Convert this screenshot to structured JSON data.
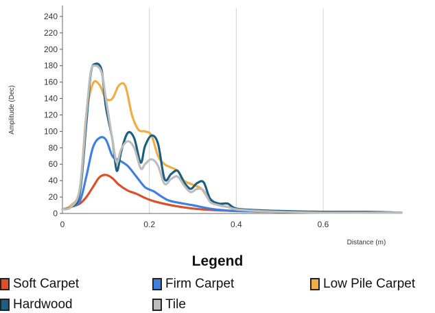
{
  "chart_data": {
    "type": "line",
    "xlabel": "Distance (m)",
    "ylabel": "Amplitude (Dec)",
    "xlim": [
      0,
      0.78
    ],
    "ylim": [
      0,
      250
    ],
    "x_ticks": [
      "0",
      "0.2",
      "0.4",
      "0.6"
    ],
    "x_tick_values": [
      0,
      0.2,
      0.4,
      0.6
    ],
    "y_ticks": [
      "0",
      "20",
      "40",
      "60",
      "80",
      "100",
      "120",
      "140",
      "160",
      "180",
      "200",
      "220",
      "240"
    ],
    "y_tick_values": [
      0,
      20,
      40,
      60,
      80,
      100,
      120,
      140,
      160,
      180,
      200,
      220,
      240
    ],
    "grid": true,
    "legend_title": "Legend",
    "legend_position": "bottom",
    "series": [
      {
        "name": "Soft Carpet",
        "color": "#d9502a",
        "points": [
          [
            0,
            5
          ],
          [
            0.02,
            8
          ],
          [
            0.04,
            12
          ],
          [
            0.055,
            20
          ],
          [
            0.07,
            32
          ],
          [
            0.085,
            44
          ],
          [
            0.1,
            47
          ],
          [
            0.115,
            43
          ],
          [
            0.13,
            35
          ],
          [
            0.15,
            28
          ],
          [
            0.17,
            24
          ],
          [
            0.19,
            19
          ],
          [
            0.21,
            15
          ],
          [
            0.25,
            10
          ],
          [
            0.3,
            6
          ],
          [
            0.35,
            4
          ],
          [
            0.4,
            3
          ],
          [
            0.5,
            2
          ],
          [
            0.6,
            1
          ],
          [
            0.7,
            1
          ],
          [
            0.78,
            1
          ]
        ]
      },
      {
        "name": "Firm Carpet",
        "color": "#3f7fe0",
        "points": [
          [
            0,
            5
          ],
          [
            0.02,
            8
          ],
          [
            0.04,
            15
          ],
          [
            0.055,
            45
          ],
          [
            0.07,
            80
          ],
          [
            0.085,
            92
          ],
          [
            0.1,
            90
          ],
          [
            0.115,
            70
          ],
          [
            0.13,
            65
          ],
          [
            0.15,
            58
          ],
          [
            0.17,
            45
          ],
          [
            0.19,
            32
          ],
          [
            0.21,
            27
          ],
          [
            0.23,
            20
          ],
          [
            0.25,
            15
          ],
          [
            0.3,
            10
          ],
          [
            0.35,
            5
          ],
          [
            0.4,
            3
          ],
          [
            0.5,
            2
          ],
          [
            0.6,
            1
          ],
          [
            0.7,
            1
          ],
          [
            0.78,
            1
          ]
        ]
      },
      {
        "name": "Low Pile Carpet",
        "color": "#f0ad45",
        "points": [
          [
            0,
            5
          ],
          [
            0.02,
            10
          ],
          [
            0.04,
            30
          ],
          [
            0.055,
            120
          ],
          [
            0.07,
            158
          ],
          [
            0.085,
            157
          ],
          [
            0.1,
            140
          ],
          [
            0.115,
            140
          ],
          [
            0.13,
            156
          ],
          [
            0.145,
            155
          ],
          [
            0.16,
            120
          ],
          [
            0.175,
            102
          ],
          [
            0.19,
            100
          ],
          [
            0.205,
            95
          ],
          [
            0.22,
            70
          ],
          [
            0.235,
            60
          ],
          [
            0.25,
            56
          ],
          [
            0.265,
            52
          ],
          [
            0.28,
            40
          ],
          [
            0.3,
            35
          ],
          [
            0.32,
            30
          ],
          [
            0.34,
            15
          ],
          [
            0.36,
            10
          ],
          [
            0.38,
            8
          ],
          [
            0.4,
            5
          ],
          [
            0.45,
            3
          ],
          [
            0.5,
            2
          ],
          [
            0.6,
            1
          ],
          [
            0.7,
            1
          ],
          [
            0.78,
            1
          ]
        ]
      },
      {
        "name": "Hardwood",
        "color": "#1c5f82",
        "points": [
          [
            0,
            5
          ],
          [
            0.02,
            8
          ],
          [
            0.04,
            25
          ],
          [
            0.055,
            110
          ],
          [
            0.065,
            170
          ],
          [
            0.075,
            182
          ],
          [
            0.09,
            175
          ],
          [
            0.1,
            130
          ],
          [
            0.115,
            90
          ],
          [
            0.125,
            52
          ],
          [
            0.135,
            75
          ],
          [
            0.15,
            98
          ],
          [
            0.165,
            92
          ],
          [
            0.18,
            62
          ],
          [
            0.19,
            82
          ],
          [
            0.205,
            95
          ],
          [
            0.22,
            85
          ],
          [
            0.235,
            42
          ],
          [
            0.25,
            48
          ],
          [
            0.265,
            52
          ],
          [
            0.28,
            38
          ],
          [
            0.295,
            30
          ],
          [
            0.31,
            37
          ],
          [
            0.325,
            38
          ],
          [
            0.34,
            18
          ],
          [
            0.36,
            12
          ],
          [
            0.38,
            12
          ],
          [
            0.4,
            6
          ],
          [
            0.45,
            4
          ],
          [
            0.5,
            3
          ],
          [
            0.6,
            2
          ],
          [
            0.7,
            2
          ],
          [
            0.78,
            1
          ]
        ]
      },
      {
        "name": "Tile",
        "color": "#bdbdbd",
        "points": [
          [
            0,
            5
          ],
          [
            0.02,
            8
          ],
          [
            0.04,
            30
          ],
          [
            0.055,
            120
          ],
          [
            0.065,
            172
          ],
          [
            0.075,
            180
          ],
          [
            0.09,
            172
          ],
          [
            0.1,
            140
          ],
          [
            0.115,
            90
          ],
          [
            0.125,
            62
          ],
          [
            0.135,
            78
          ],
          [
            0.15,
            88
          ],
          [
            0.165,
            80
          ],
          [
            0.18,
            55
          ],
          [
            0.19,
            60
          ],
          [
            0.205,
            66
          ],
          [
            0.22,
            58
          ],
          [
            0.235,
            36
          ],
          [
            0.25,
            42
          ],
          [
            0.265,
            45
          ],
          [
            0.28,
            34
          ],
          [
            0.295,
            26
          ],
          [
            0.31,
            30
          ],
          [
            0.325,
            28
          ],
          [
            0.34,
            14
          ],
          [
            0.36,
            10
          ],
          [
            0.38,
            8
          ],
          [
            0.4,
            5
          ],
          [
            0.45,
            3
          ],
          [
            0.5,
            2
          ],
          [
            0.6,
            1
          ],
          [
            0.7,
            1
          ],
          [
            0.78,
            1
          ]
        ]
      }
    ]
  }
}
